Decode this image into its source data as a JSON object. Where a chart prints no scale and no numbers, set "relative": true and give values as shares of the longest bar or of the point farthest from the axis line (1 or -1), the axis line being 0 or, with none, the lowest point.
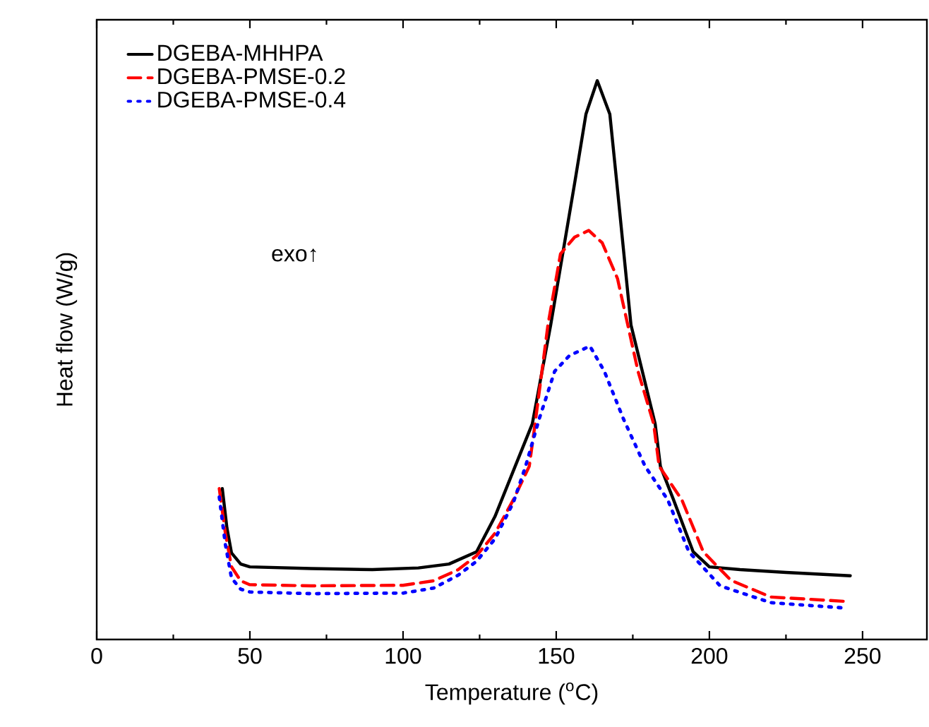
{
  "chart_data": {
    "type": "line",
    "relative": true,
    "xlabel": "Temperature ($^{o}$C)",
    "ylabel": "Heat flow (W/g)",
    "xlim": [
      0,
      271
    ],
    "xticks": [
      0,
      50,
      100,
      150,
      200,
      250
    ],
    "legend": "top left",
    "grid": false,
    "marker": "none",
    "annotations": [
      "exo↑"
    ],
    "series": [
      {
        "name": "DGEBA-MHHPA",
        "color": "#000000",
        "line_style": "solid",
        "x": [
          41,
          42.5,
          44,
          47,
          50,
          70,
          90,
          105,
          115,
          124,
          130,
          136.6,
          142.2,
          148.2,
          156,
          159.7,
          163.4,
          167.5,
          169.8,
          174.4,
          182.3,
          184,
          188.3,
          194.7,
          200,
          210,
          225,
          246
        ],
        "values": [
          0.27,
          0.2,
          0.155,
          0.135,
          0.13,
          0.127,
          0.125,
          0.128,
          0.135,
          0.157,
          0.22,
          0.31,
          0.386,
          0.563,
          0.816,
          0.94,
          1.0,
          0.94,
          0.816,
          0.563,
          0.386,
          0.31,
          0.25,
          0.157,
          0.13,
          0.125,
          0.12,
          0.114
        ]
      },
      {
        "name": "DGEBA-PMSE-0.2",
        "color": "#ff0000",
        "line_style": "dashed",
        "x": [
          40,
          42,
          44,
          47,
          50,
          70,
          100,
          110,
          118,
          124,
          130,
          136,
          141.2,
          143.1,
          147.3,
          151.4,
          156,
          160.6,
          165,
          170,
          176.7,
          181.8,
          183.6,
          191,
          198,
          207,
          220,
          245
        ],
        "values": [
          0.27,
          0.19,
          0.13,
          0.105,
          0.098,
          0.096,
          0.097,
          0.105,
          0.125,
          0.15,
          0.19,
          0.25,
          0.31,
          0.386,
          0.563,
          0.69,
          0.72,
          0.732,
          0.71,
          0.646,
          0.48,
          0.386,
          0.31,
          0.25,
          0.157,
          0.106,
          0.076,
          0.068
        ]
      },
      {
        "name": "DGEBA-PMSE-0.4",
        "color": "#0000ff",
        "line_style": "dotted",
        "x": [
          40,
          42,
          44,
          47,
          50,
          70,
          100,
          110,
          118,
          124,
          130,
          136,
          140,
          144.4,
          149.5,
          154.3,
          161,
          165.7,
          172,
          179,
          186.4,
          193.3,
          203.5,
          220,
          245
        ],
        "values": [
          0.255,
          0.17,
          0.11,
          0.09,
          0.085,
          0.082,
          0.083,
          0.092,
          0.115,
          0.14,
          0.18,
          0.245,
          0.31,
          0.394,
          0.48,
          0.508,
          0.525,
          0.48,
          0.394,
          0.31,
          0.25,
          0.157,
          0.096,
          0.066,
          0.056
        ]
      }
    ]
  }
}
